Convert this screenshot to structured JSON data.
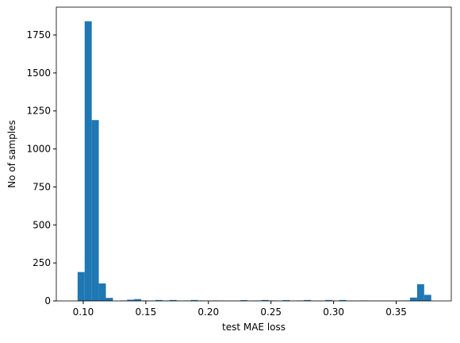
{
  "chart_data": {
    "type": "histogram",
    "xlabel": "test MAE loss",
    "ylabel": "No of samples",
    "color": "#1f77b4",
    "bins": [
      0.0955,
      0.10115,
      0.1068,
      0.11245,
      0.1181,
      0.12375,
      0.1294,
      0.13505,
      0.1407,
      0.14635,
      0.152,
      0.15765,
      0.1633,
      0.16895,
      0.1746,
      0.18025,
      0.1859,
      0.19155,
      0.1972,
      0.20285,
      0.2085,
      0.21415,
      0.2198,
      0.22545,
      0.2311,
      0.23675,
      0.2424,
      0.24805,
      0.2537,
      0.25935,
      0.265,
      0.27065,
      0.2763,
      0.28195,
      0.2876,
      0.29325,
      0.2989,
      0.30455,
      0.3102,
      0.31585,
      0.3215,
      0.32715,
      0.3328,
      0.33845,
      0.3441,
      0.34975,
      0.3554,
      0.36105,
      0.3667,
      0.37235,
      0.378
    ],
    "values": [
      190,
      1840,
      1190,
      115,
      20,
      0,
      3,
      8,
      12,
      3,
      2,
      6,
      3,
      6,
      2,
      3,
      6,
      3,
      2,
      3,
      2,
      2,
      2,
      5,
      2,
      3,
      6,
      3,
      2,
      5,
      2,
      3,
      6,
      2,
      2,
      6,
      2,
      6,
      2,
      2,
      3,
      2,
      2,
      2,
      2,
      2,
      3,
      22,
      110,
      40
    ],
    "xlim": [
      0.0785,
      0.394
    ],
    "ylim": [
      0,
      1933
    ],
    "xticks": [
      {
        "value": 0.1,
        "label": "0.10"
      },
      {
        "value": 0.15,
        "label": "0.15"
      },
      {
        "value": 0.2,
        "label": "0.20"
      },
      {
        "value": 0.25,
        "label": "0.25"
      },
      {
        "value": 0.3,
        "label": "0.30"
      },
      {
        "value": 0.35,
        "label": "0.35"
      }
    ],
    "yticks": [
      0,
      250,
      500,
      750,
      1000,
      1250,
      1500,
      1750
    ]
  }
}
